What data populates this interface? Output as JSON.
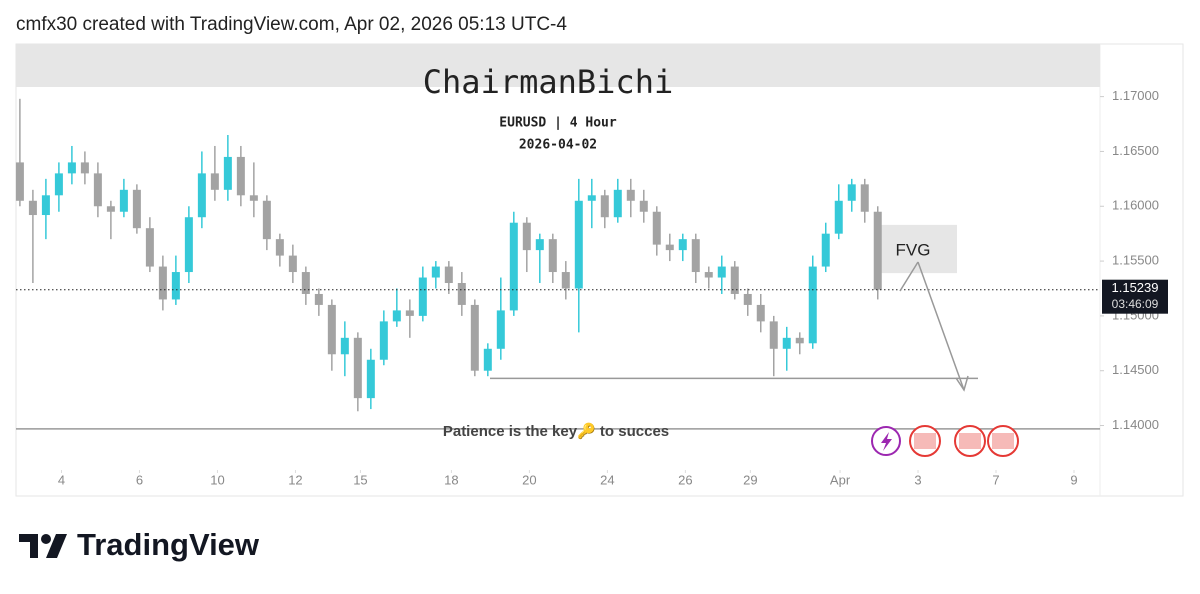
{
  "header": "cmfx30 created with TradingView.com, Apr 02, 2026 05:13 UTC-4",
  "brand": "TradingView",
  "chart_data": {
    "type": "candlestick",
    "title": "ChairmanBichi",
    "subtitle": "EURUSD | 4 Hour",
    "date": "2026-04-02",
    "up_color": "#35c9d8",
    "down_color": "#a3a3a3",
    "open": [
      1.164,
      1.1605,
      1.1592,
      1.161,
      1.163,
      1.164,
      1.163,
      1.16,
      1.1595,
      1.1615,
      1.158,
      1.1545,
      1.1515,
      1.154,
      1.159,
      1.163,
      1.1615,
      1.1645,
      1.161,
      1.1605,
      1.157,
      1.1555,
      1.154,
      1.152,
      1.151,
      1.1465,
      1.148,
      1.1425,
      1.146,
      1.1495,
      1.1505,
      1.15,
      1.1535,
      1.1545,
      1.153,
      1.151,
      1.145,
      1.147,
      1.1505,
      1.1585,
      1.156,
      1.157,
      1.154,
      1.1525,
      1.1605,
      1.161,
      1.159,
      1.1615,
      1.1605,
      1.1595,
      1.1565,
      1.156,
      1.157,
      1.154,
      1.1535,
      1.1545,
      1.152,
      1.151,
      1.1495,
      1.147,
      1.148,
      1.1475,
      1.1545,
      1.1575,
      1.1605,
      1.162,
      1.1595
    ],
    "high": [
      1.1698,
      1.1615,
      1.1625,
      1.164,
      1.1655,
      1.165,
      1.164,
      1.1605,
      1.1625,
      1.162,
      1.159,
      1.1555,
      1.1555,
      1.16,
      1.165,
      1.1655,
      1.1665,
      1.1655,
      1.164,
      1.161,
      1.1575,
      1.1565,
      1.1545,
      1.1525,
      1.1515,
      1.1495,
      1.1485,
      1.147,
      1.1505,
      1.1525,
      1.1515,
      1.1545,
      1.155,
      1.155,
      1.154,
      1.1515,
      1.1475,
      1.1535,
      1.1595,
      1.159,
      1.1575,
      1.1575,
      1.155,
      1.1625,
      1.1625,
      1.1615,
      1.1625,
      1.1625,
      1.1615,
      1.16,
      1.1575,
      1.1575,
      1.1575,
      1.1545,
      1.1555,
      1.155,
      1.1525,
      1.152,
      1.15,
      1.149,
      1.1485,
      1.1555,
      1.1585,
      1.162,
      1.1625,
      1.1625,
      1.16
    ],
    "low": [
      1.16,
      1.153,
      1.157,
      1.1595,
      1.162,
      1.162,
      1.159,
      1.157,
      1.159,
      1.1575,
      1.154,
      1.1505,
      1.151,
      1.153,
      1.158,
      1.1605,
      1.1605,
      1.16,
      1.159,
      1.156,
      1.1545,
      1.153,
      1.151,
      1.15,
      1.145,
      1.1445,
      1.1413,
      1.1415,
      1.1455,
      1.149,
      1.148,
      1.1495,
      1.1525,
      1.152,
      1.15,
      1.1445,
      1.1445,
      1.146,
      1.15,
      1.154,
      1.153,
      1.153,
      1.1515,
      1.1485,
      1.158,
      1.158,
      1.1585,
      1.159,
      1.1585,
      1.1555,
      1.155,
      1.155,
      1.153,
      1.1525,
      1.152,
      1.1515,
      1.15,
      1.1485,
      1.1445,
      1.145,
      1.1465,
      1.147,
      1.154,
      1.157,
      1.1595,
      1.1585,
      1.1515
    ],
    "close": [
      1.1605,
      1.1592,
      1.161,
      1.163,
      1.164,
      1.163,
      1.16,
      1.1595,
      1.1615,
      1.158,
      1.1545,
      1.1515,
      1.154,
      1.159,
      1.163,
      1.1615,
      1.1645,
      1.161,
      1.1605,
      1.157,
      1.1555,
      1.154,
      1.152,
      1.151,
      1.1465,
      1.148,
      1.1425,
      1.146,
      1.1495,
      1.1505,
      1.15,
      1.1535,
      1.1545,
      1.153,
      1.151,
      1.145,
      1.147,
      1.1505,
      1.1585,
      1.156,
      1.157,
      1.154,
      1.1525,
      1.1605,
      1.161,
      1.159,
      1.1615,
      1.1605,
      1.1595,
      1.1565,
      1.156,
      1.157,
      1.154,
      1.1535,
      1.1545,
      1.152,
      1.151,
      1.1495,
      1.147,
      1.148,
      1.1475,
      1.1545,
      1.1575,
      1.1605,
      1.162,
      1.1595,
      1.1524
    ],
    "xlim": [
      -0.3,
      83.1
    ],
    "xticks": [
      {
        "value": 3.2,
        "label": "4"
      },
      {
        "value": 9.2,
        "label": "6"
      },
      {
        "value": 15.2,
        "label": "10"
      },
      {
        "value": 21.2,
        "label": "12"
      },
      {
        "value": 26.2,
        "label": "15"
      },
      {
        "value": 33.2,
        "label": "18"
      },
      {
        "value": 39.2,
        "label": "20"
      },
      {
        "value": 45.2,
        "label": "24"
      },
      {
        "value": 51.2,
        "label": "26"
      },
      {
        "value": 56.2,
        "label": "29"
      },
      {
        "value": 63.1,
        "label": "Apr"
      },
      {
        "value": 69.1,
        "label": "3"
      },
      {
        "value": 75.1,
        "label": "7"
      },
      {
        "value": 81.1,
        "label": "9"
      }
    ],
    "ylim": [
      1.1364,
      1.1748
    ],
    "yticks": [
      {
        "value": 1.14,
        "label": "1.14000"
      },
      {
        "value": 1.145,
        "label": "1.14500"
      },
      {
        "value": 1.15,
        "label": "1.15000"
      },
      {
        "value": 1.155,
        "label": "1.15500"
      },
      {
        "value": 1.16,
        "label": "1.16000"
      },
      {
        "value": 1.165,
        "label": "1.16500"
      },
      {
        "value": 1.17,
        "label": "1.17000"
      }
    ],
    "current_price": 1.15239,
    "countdown": "03:46:09",
    "support_line": 1.1443,
    "base_line": 1.1397,
    "fvg": {
      "label": "FVG",
      "low": 1.1539,
      "high": 1.1583
    },
    "note": "Patience is the key🔑 to succes"
  }
}
